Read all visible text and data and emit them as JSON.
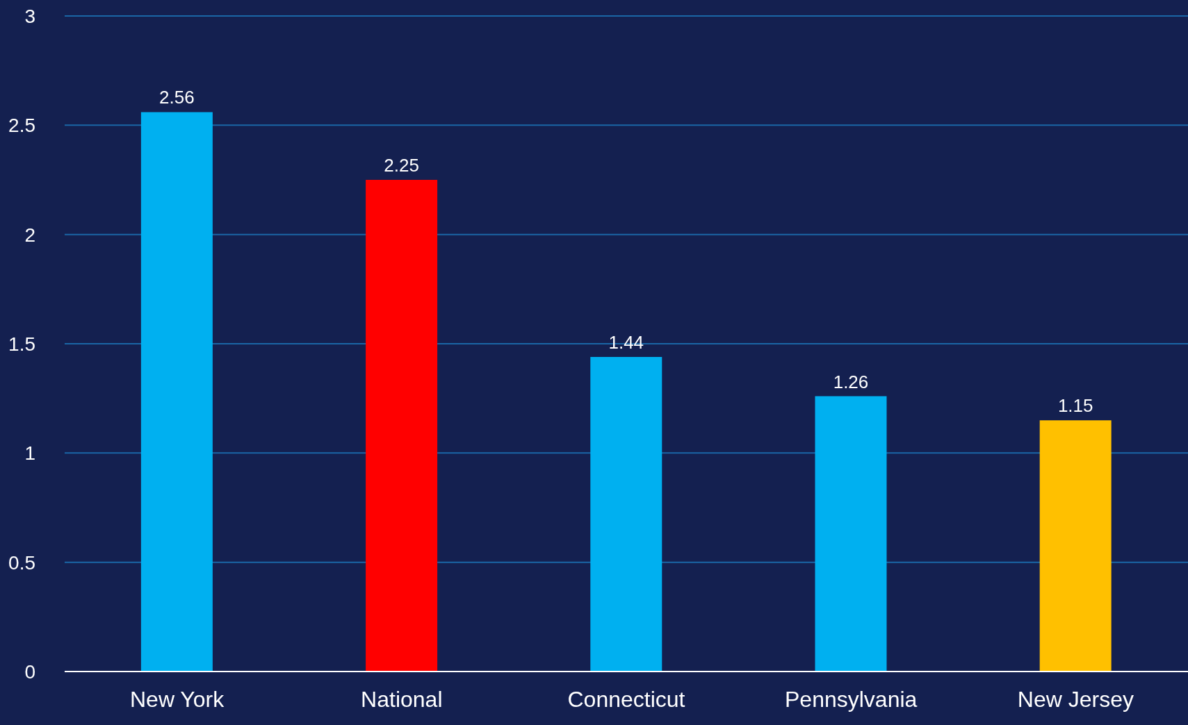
{
  "chart_data": {
    "type": "bar",
    "categories": [
      "New York",
      "National",
      "Connecticut",
      "Pennsylvania",
      "New Jersey"
    ],
    "values": [
      2.56,
      2.25,
      1.44,
      1.26,
      1.15
    ],
    "colors": [
      "#00b0f0",
      "#ff0000",
      "#00b0f0",
      "#00b0f0",
      "#ffc000"
    ],
    "ylim": [
      0,
      3
    ],
    "yticks": [
      0,
      0.5,
      1,
      1.5,
      2,
      2.5,
      3
    ],
    "grid": "y",
    "data_labels": true
  }
}
